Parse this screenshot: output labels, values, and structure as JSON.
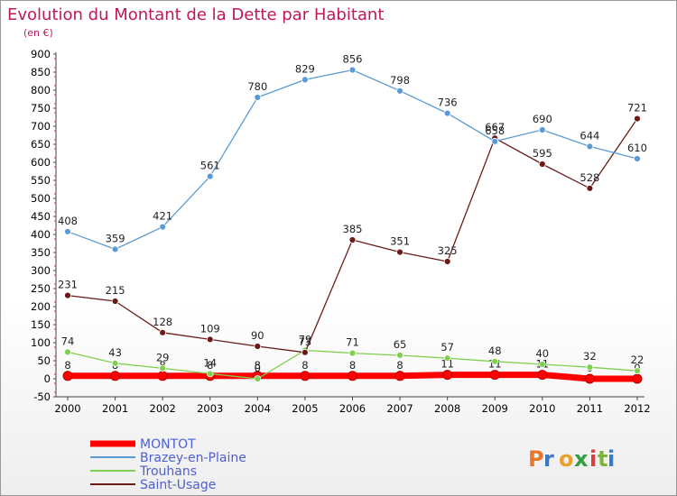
{
  "chart_data": {
    "type": "line",
    "title": "Evolution du Montant de la Dette par Habitant",
    "subtitle": "(en €)",
    "x": [
      "2000",
      "2001",
      "2002",
      "2003",
      "2004",
      "2005",
      "2006",
      "2007",
      "2008",
      "2009",
      "2010",
      "2011",
      "2012"
    ],
    "ylim": [
      -50,
      900
    ],
    "yticks": [
      -50,
      0,
      50,
      100,
      150,
      200,
      250,
      300,
      350,
      400,
      450,
      500,
      550,
      600,
      650,
      700,
      750,
      800,
      850,
      900
    ],
    "grid": false,
    "legend_position": "bottom-left",
    "series": [
      {
        "name": "MONTOT",
        "color": "#ff0000",
        "values": [
          8,
          8,
          8,
          8,
          8,
          8,
          8,
          8,
          11,
          11,
          11,
          0,
          0
        ],
        "labels": [
          "8",
          "8",
          "8",
          "8",
          "8",
          "8",
          "8",
          "8",
          "11",
          "11",
          "11",
          "0",
          "0"
        ]
      },
      {
        "name": "Brazey-en-Plaine",
        "color": "#5b9bd5",
        "values": [
          408,
          359,
          421,
          561,
          780,
          829,
          856,
          798,
          736,
          658,
          690,
          644,
          610
        ],
        "labels": [
          "408",
          "359",
          "421",
          "561",
          "780",
          "829",
          "856",
          "798",
          "736",
          "658",
          "690",
          "644",
          "610"
        ]
      },
      {
        "name": "Trouhans",
        "color": "#80d050",
        "values": [
          74,
          43,
          29,
          14,
          0,
          79,
          71,
          65,
          57,
          48,
          40,
          32,
          22
        ],
        "labels": [
          "74",
          "43",
          "29",
          "14",
          "0",
          "79",
          "71",
          "65",
          "57",
          "48",
          "40",
          "32",
          "22"
        ]
      },
      {
        "name": "Saint-Usage",
        "color": "#6b1a1a",
        "values": [
          231,
          215,
          128,
          109,
          90,
          73,
          385,
          351,
          325,
          667,
          595,
          528,
          721
        ],
        "labels": [
          "231",
          "215",
          "128",
          "109",
          "90",
          "73",
          "385",
          "351",
          "325",
          "667",
          "595",
          "528",
          "721"
        ]
      }
    ]
  },
  "brand": {
    "name": "Proxiti"
  }
}
